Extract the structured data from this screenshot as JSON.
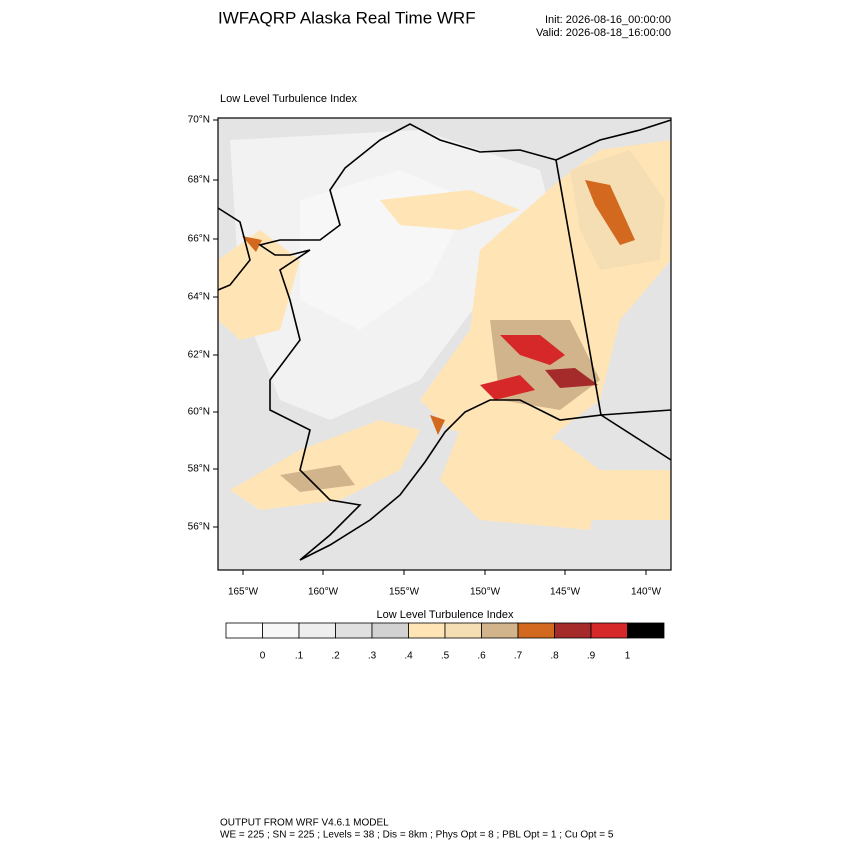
{
  "header": {
    "title": "IWFAQRP Alaska Real Time WRF",
    "init": "Init: 2026-08-16_00:00:00",
    "valid": "Valid: 2026-08-18_16:00:00"
  },
  "map": {
    "title": "Low Level Turbulence Index",
    "lat_labels": [
      "70°N",
      "68°N",
      "66°N",
      "64°N",
      "62°N",
      "60°N",
      "58°N",
      "56°N"
    ],
    "lon_labels": [
      "165°W",
      "160°W",
      "155°W",
      "150°W",
      "145°W",
      "140°W"
    ]
  },
  "colorbar": {
    "title": "Low Level Turbulence Index",
    "colors": [
      "#ffffff",
      "#f7f7f7",
      "#eeeeee",
      "#e0e0e0",
      "#d2d2d2",
      "#ffe4b5",
      "#f5deb3",
      "#d2b48c",
      "#d2691e",
      "#a52a2a",
      "#d62828",
      "#000000"
    ],
    "labels": [
      "0",
      ".1",
      ".2",
      ".3",
      ".4",
      ".5",
      ".6",
      ".7",
      ".8",
      ".9",
      "1"
    ]
  },
  "footer": {
    "line1": "OUTPUT FROM WRF V4.6.1 MODEL",
    "line2": "WE = 225 ; SN = 225 ; Levels = 38 ; Dis = 8km ; Phys Opt = 8 ; PBL Opt = 1 ; Cu Opt = 5"
  }
}
